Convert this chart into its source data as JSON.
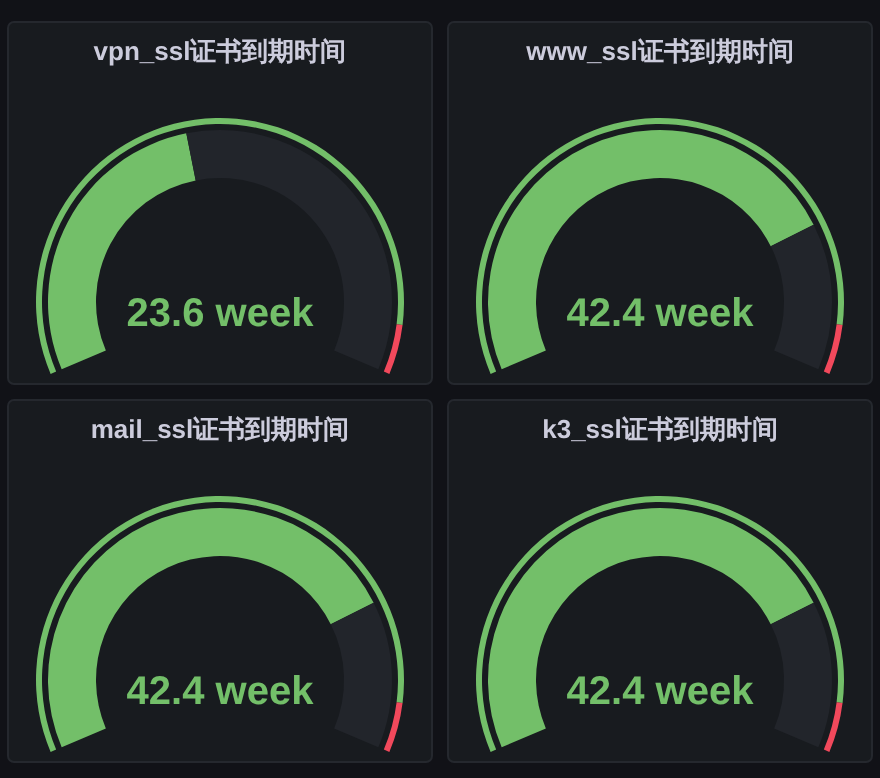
{
  "chart_data": [
    {
      "type": "donut",
      "title": "vpn_ssl证书到期时间",
      "categories": [
        null,
        null
      ],
      "annotations": [
        "23.6 week"
      ],
      "series": [
        {
          "values": [
            45,
            55
          ],
          "colors": [
            "#73bf69",
            "#22252b"
          ]
        },
        {
          "values": [
            93,
            7
          ],
          "colors": [
            "#73bf69",
            "#f2495c"
          ]
        }
      ]
    },
    {
      "type": "donut",
      "title": "www_ssl证书到期时间",
      "categories": [
        null,
        null
      ],
      "annotations": [
        "42.4 week"
      ],
      "series": [
        {
          "values": [
            78,
            22
          ],
          "colors": [
            "#73bf69",
            "#22252b"
          ]
        },
        {
          "values": [
            93,
            7
          ],
          "colors": [
            "#73bf69",
            "#f2495c"
          ]
        }
      ]
    },
    {
      "type": "donut",
      "title": "mail_ssl证书到期时间",
      "categories": [
        null,
        null
      ],
      "annotations": [
        "42.4 week"
      ],
      "series": [
        {
          "values": [
            78,
            22
          ],
          "colors": [
            "#73bf69",
            "#22252b"
          ]
        },
        {
          "values": [
            93,
            7
          ],
          "colors": [
            "#73bf69",
            "#f2495c"
          ]
        }
      ]
    },
    {
      "type": "donut",
      "title": "k3_ssl证书到期时间",
      "categories": [
        null,
        null
      ],
      "annotations": [
        "42.4 week"
      ],
      "series": [
        {
          "values": [
            78,
            22
          ],
          "colors": [
            "#73bf69",
            "#22252b"
          ]
        },
        {
          "values": [
            93,
            7
          ],
          "colors": [
            "#73bf69",
            "#f2495c"
          ]
        }
      ]
    }
  ]
}
